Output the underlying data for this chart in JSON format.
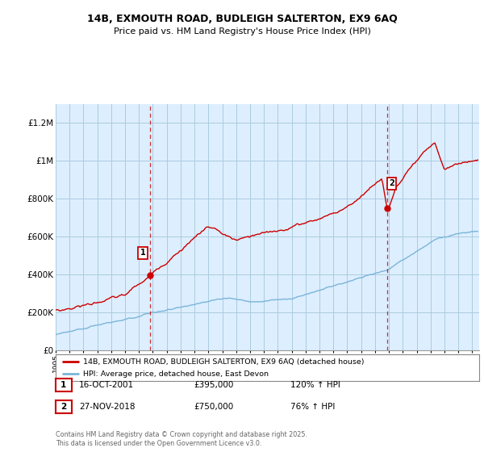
{
  "title": "14B, EXMOUTH ROAD, BUDLEIGH SALTERTON, EX9 6AQ",
  "subtitle": "Price paid vs. HM Land Registry's House Price Index (HPI)",
  "legend_line1": "14B, EXMOUTH ROAD, BUDLEIGH SALTERTON, EX9 6AQ (detached house)",
  "legend_line2": "HPI: Average price, detached house, East Devon",
  "sale1_date": "16-OCT-2001",
  "sale1_price": "£395,000",
  "sale1_hpi": "120% ↑ HPI",
  "sale1_year": 2001.79,
  "sale1_value": 395000,
  "sale2_date": "27-NOV-2018",
  "sale2_price": "£750,000",
  "sale2_hpi": "76% ↑ HPI",
  "sale2_year": 2018.9,
  "sale2_value": 750000,
  "hpi_color": "#7ab5d8",
  "price_color": "#cc0000",
  "vline_color": "#cc0000",
  "dot_color": "#cc0000",
  "background_color": "#ffffff",
  "chart_bg_color": "#ddeeff",
  "grid_color": "#aaccdd",
  "ylim": [
    0,
    1300000
  ],
  "xlim_start": 1995,
  "xlim_end": 2025.5,
  "footer": "Contains HM Land Registry data © Crown copyright and database right 2025.\nThis data is licensed under the Open Government Licence v3.0.",
  "yticks": [
    0,
    200000,
    400000,
    600000,
    800000,
    1000000,
    1200000
  ],
  "ytick_labels": [
    "£0",
    "£200K",
    "£400K",
    "£600K",
    "£800K",
    "£1M",
    "£1.2M"
  ]
}
